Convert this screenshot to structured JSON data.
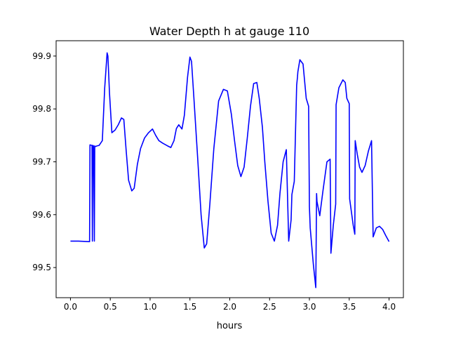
{
  "chart_data": {
    "type": "line",
    "title": "Water Depth h at gauge 110",
    "xlabel": "hours",
    "ylabel": "",
    "xlim": [
      -0.18,
      4.18
    ],
    "ylim": [
      99.443,
      99.929
    ],
    "xticks": [
      0.0,
      0.5,
      1.0,
      1.5,
      2.0,
      2.5,
      3.0,
      3.5,
      4.0
    ],
    "xtick_labels": [
      "0.0",
      "0.5",
      "1.0",
      "1.5",
      "2.0",
      "2.5",
      "3.0",
      "3.5",
      "4.0"
    ],
    "yticks": [
      99.5,
      99.6,
      99.7,
      99.8,
      99.9
    ],
    "ytick_labels": [
      "99.5",
      "99.6",
      "99.7",
      "99.8",
      "99.9"
    ],
    "grid": false,
    "legend": "none",
    "series": [
      {
        "color": "#0000ff",
        "x": [
          0.0,
          0.1,
          0.24,
          0.245,
          0.27,
          0.275,
          0.28,
          0.29,
          0.3,
          0.305,
          0.31,
          0.32,
          0.33,
          0.36,
          0.4,
          0.43,
          0.46,
          0.47,
          0.49,
          0.52,
          0.56,
          0.6,
          0.64,
          0.67,
          0.7,
          0.73,
          0.77,
          0.8,
          0.84,
          0.88,
          0.93,
          0.98,
          1.03,
          1.07,
          1.11,
          1.16,
          1.22,
          1.26,
          1.3,
          1.33,
          1.36,
          1.4,
          1.43,
          1.47,
          1.5,
          1.52,
          1.55,
          1.6,
          1.64,
          1.68,
          1.71,
          1.75,
          1.8,
          1.86,
          1.92,
          1.97,
          2.02,
          2.06,
          2.1,
          2.14,
          2.18,
          2.22,
          2.26,
          2.3,
          2.34,
          2.37,
          2.41,
          2.44,
          2.48,
          2.52,
          2.56,
          2.6,
          2.63,
          2.67,
          2.71,
          2.74,
          2.77,
          2.78,
          2.81,
          2.84,
          2.85,
          2.855,
          2.88,
          2.92,
          2.96,
          2.99,
          3.0,
          3.01,
          3.05,
          3.08,
          3.09,
          3.095,
          3.13,
          3.17,
          3.22,
          3.26,
          3.27,
          3.3,
          3.33,
          3.335,
          3.37,
          3.42,
          3.45,
          3.47,
          3.5,
          3.505,
          3.55,
          3.57,
          3.575,
          3.6,
          3.63,
          3.66,
          3.7,
          3.74,
          3.78,
          3.8,
          3.805,
          3.84,
          3.88,
          3.92,
          3.96,
          4.0
        ],
        "y": [
          99.55,
          99.55,
          99.549,
          99.732,
          99.731,
          99.55,
          99.731,
          99.73,
          99.55,
          99.73,
          99.729,
          99.729,
          99.73,
          99.731,
          99.74,
          99.84,
          99.906,
          99.9,
          99.83,
          99.755,
          99.76,
          99.77,
          99.783,
          99.78,
          99.72,
          99.665,
          99.645,
          99.65,
          99.695,
          99.725,
          99.745,
          99.755,
          99.762,
          99.75,
          99.74,
          99.735,
          99.73,
          99.727,
          99.74,
          99.763,
          99.77,
          99.762,
          99.788,
          99.86,
          99.898,
          99.89,
          99.82,
          99.7,
          99.6,
          99.537,
          99.545,
          99.62,
          99.725,
          99.815,
          99.837,
          99.834,
          99.79,
          99.74,
          99.693,
          99.672,
          99.69,
          99.745,
          99.805,
          99.848,
          99.85,
          99.82,
          99.765,
          99.7,
          99.625,
          99.565,
          99.55,
          99.58,
          99.64,
          99.7,
          99.723,
          99.55,
          99.59,
          99.638,
          99.663,
          99.845,
          99.86,
          99.87,
          99.893,
          99.885,
          99.82,
          99.805,
          99.615,
          99.575,
          99.505,
          99.462,
          99.64,
          99.625,
          99.598,
          99.645,
          99.7,
          99.705,
          99.527,
          99.58,
          99.62,
          99.808,
          99.84,
          99.855,
          99.85,
          99.82,
          99.81,
          99.63,
          99.58,
          99.563,
          99.74,
          99.715,
          99.69,
          99.68,
          99.693,
          99.72,
          99.74,
          99.558,
          99.56,
          99.575,
          99.578,
          99.572,
          99.56,
          99.549
        ]
      }
    ]
  }
}
